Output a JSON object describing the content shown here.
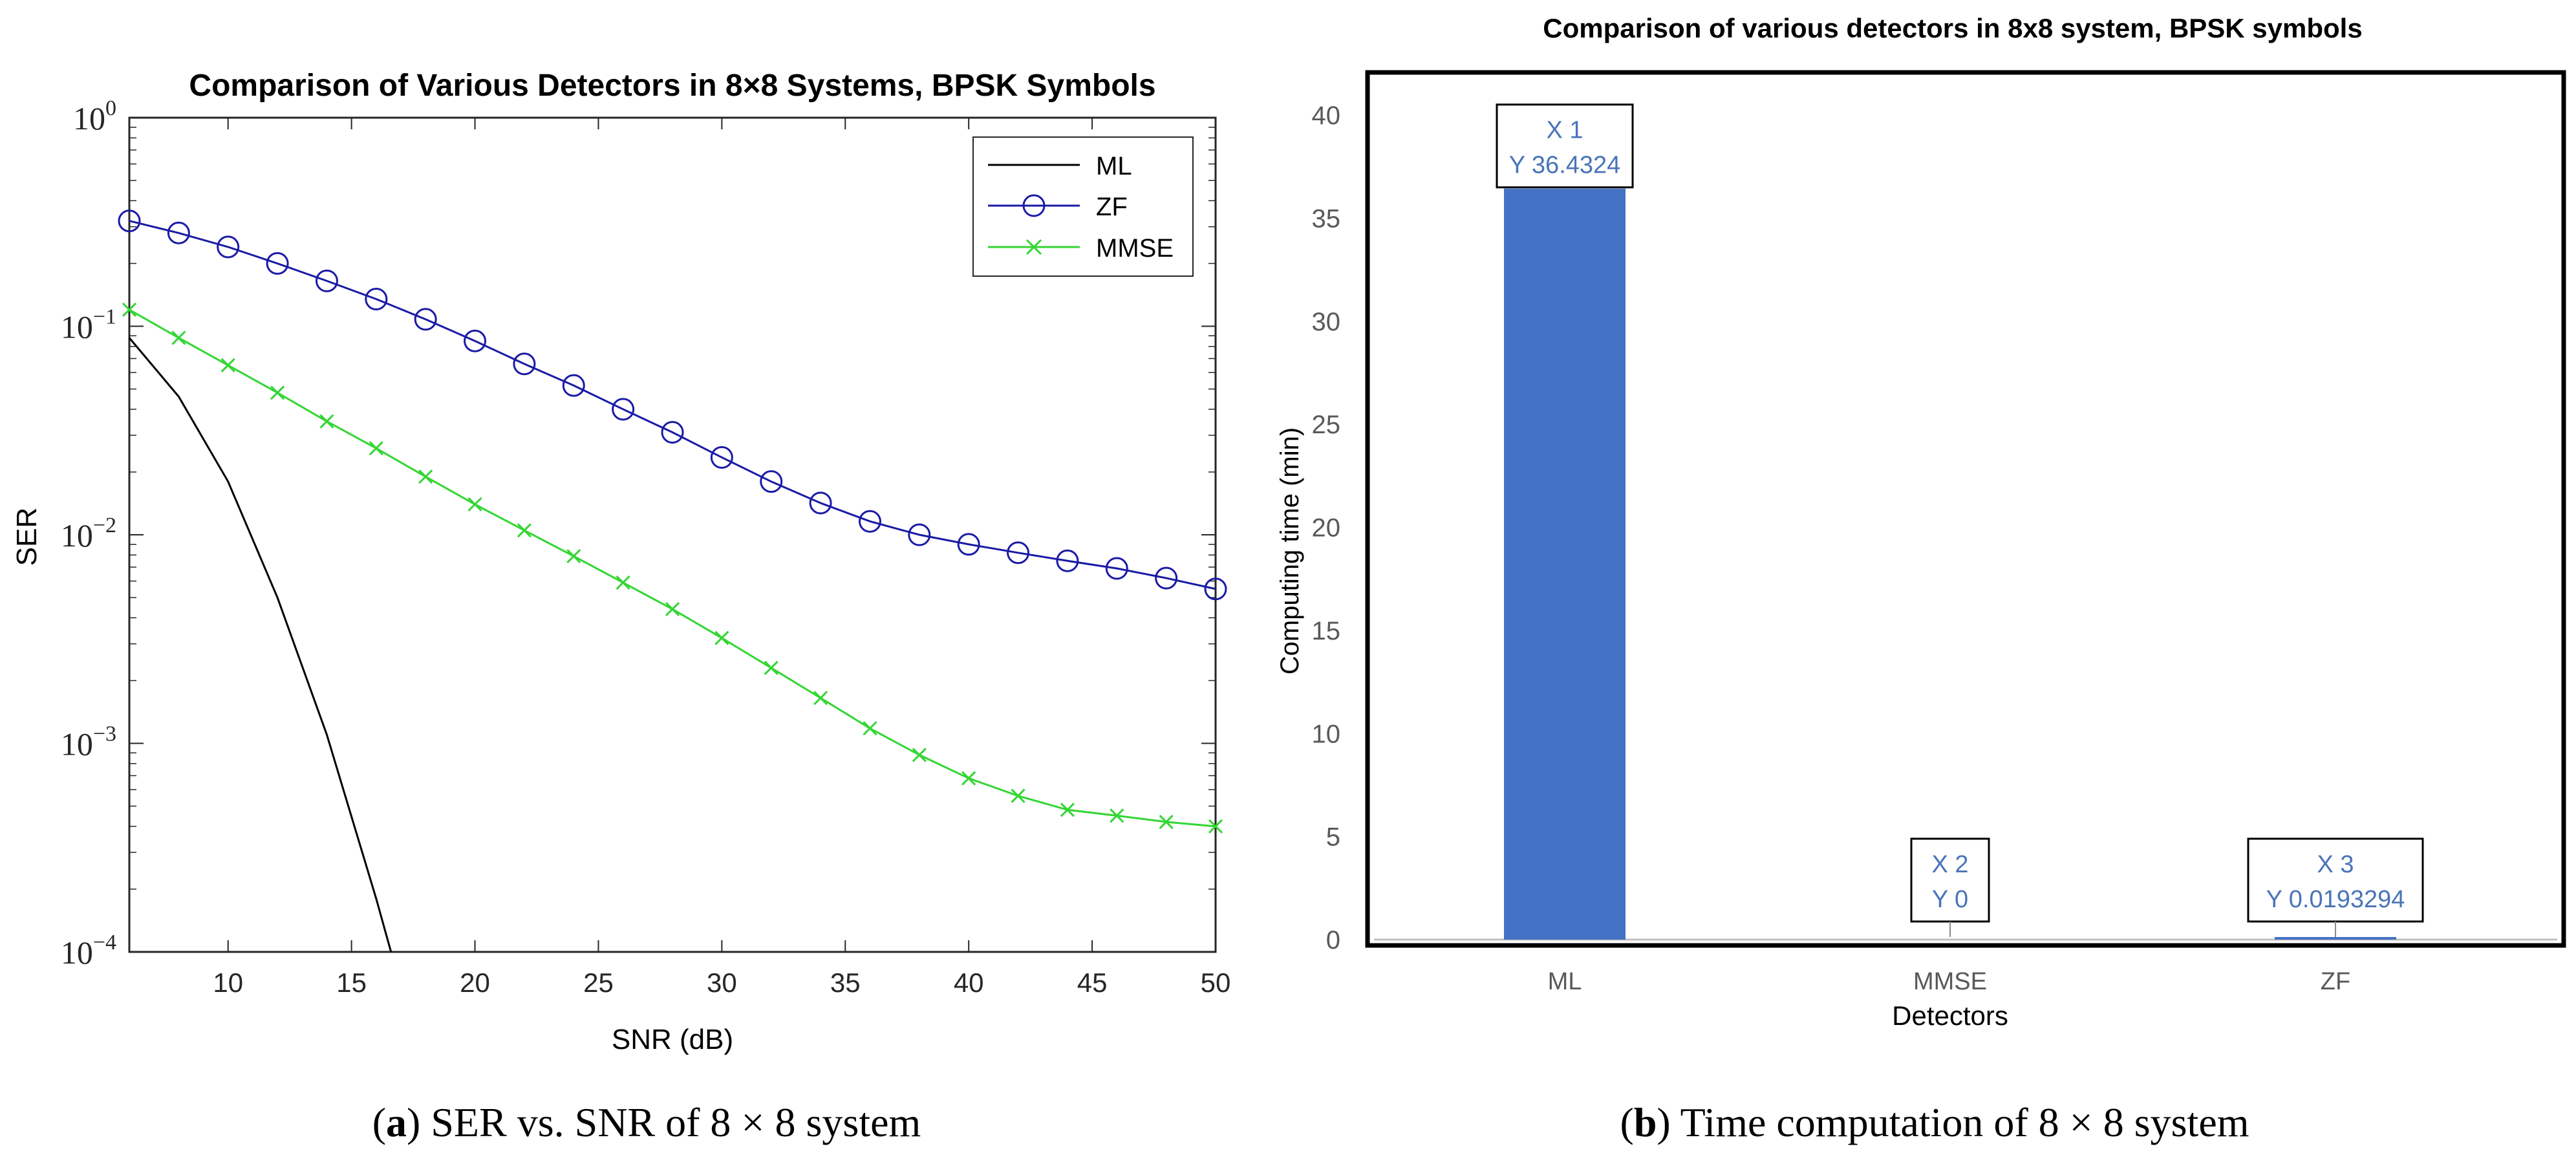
{
  "chart_data": [
    {
      "type": "line",
      "title": "Comparison of Various Detectors in 8×8 Systems, BPSK Symbols",
      "xlabel": "SNR (dB)",
      "ylabel": "SER",
      "yscale": "log",
      "xlim": [
        6,
        50
      ],
      "ylim": [
        0.0001,
        1
      ],
      "xticks": [
        10,
        15,
        20,
        25,
        30,
        35,
        40,
        45,
        50
      ],
      "yticks": [
        {
          "value": 1,
          "base": "10",
          "exp": "0"
        },
        {
          "value": 0.1,
          "base": "10",
          "exp": "−1"
        },
        {
          "value": 0.01,
          "base": "10",
          "exp": "−2"
        },
        {
          "value": 0.001,
          "base": "10",
          "exp": "−3"
        },
        {
          "value": 0.0001,
          "base": "10",
          "exp": "−4"
        }
      ],
      "legend_position": "top-right",
      "caption_label": "a",
      "caption_text": "SER vs. SNR of 8 × 8 system",
      "series": [
        {
          "name": "ML",
          "color": "#000000",
          "marker": "none",
          "x": [
            6,
            8,
            10,
            12,
            14,
            16,
            16.6
          ],
          "y": [
            0.088,
            0.046,
            0.018,
            0.005,
            0.0011,
            0.00018,
            0.0001
          ]
        },
        {
          "name": "ZF",
          "color": "#1a1aa6",
          "marker": "circle",
          "x": [
            6,
            8,
            10,
            12,
            14,
            16,
            18,
            20,
            22,
            24,
            26,
            28,
            30,
            32,
            34,
            36,
            38,
            40,
            42,
            44,
            46,
            48,
            50
          ],
          "y": [
            0.32,
            0.28,
            0.24,
            0.2,
            0.165,
            0.135,
            0.108,
            0.085,
            0.066,
            0.052,
            0.04,
            0.031,
            0.0235,
            0.018,
            0.0142,
            0.0116,
            0.01,
            0.009,
            0.0082,
            0.0075,
            0.0069,
            0.0062,
            0.0055
          ]
        },
        {
          "name": "MMSE",
          "color": "#33d633",
          "marker": "x",
          "x": [
            6,
            8,
            10,
            12,
            14,
            16,
            18,
            20,
            22,
            24,
            26,
            28,
            30,
            32,
            34,
            36,
            38,
            40,
            42,
            44,
            46,
            48,
            50
          ],
          "y": [
            0.12,
            0.088,
            0.065,
            0.048,
            0.035,
            0.026,
            0.019,
            0.014,
            0.0105,
            0.0079,
            0.0059,
            0.0044,
            0.0032,
            0.0023,
            0.00165,
            0.00118,
            0.00088,
            0.00068,
            0.00056,
            0.00048,
            0.00045,
            0.00042,
            0.0004
          ]
        }
      ]
    },
    {
      "type": "bar",
      "title": "Comparison of various detectors in 8x8 system, BPSK symbols",
      "xlabel": "Detectors",
      "ylabel": "Computing time (min)",
      "categories": [
        "ML",
        "MMSE",
        "ZF"
      ],
      "values": [
        36.4324,
        0,
        0.0193294
      ],
      "ylim": [
        0,
        40
      ],
      "yticks": [
        0,
        5,
        10,
        15,
        20,
        25,
        30,
        35,
        40
      ],
      "color": "#4472c4",
      "datatips": [
        {
          "x_label": "X 1",
          "y_label": "Y 36.4324"
        },
        {
          "x_label": "X 2",
          "y_label": "Y 0"
        },
        {
          "x_label": "X 3",
          "y_label": "Y 0.0193294"
        }
      ],
      "caption_label": "b",
      "caption_text": "Time computation of 8 × 8 system"
    }
  ]
}
